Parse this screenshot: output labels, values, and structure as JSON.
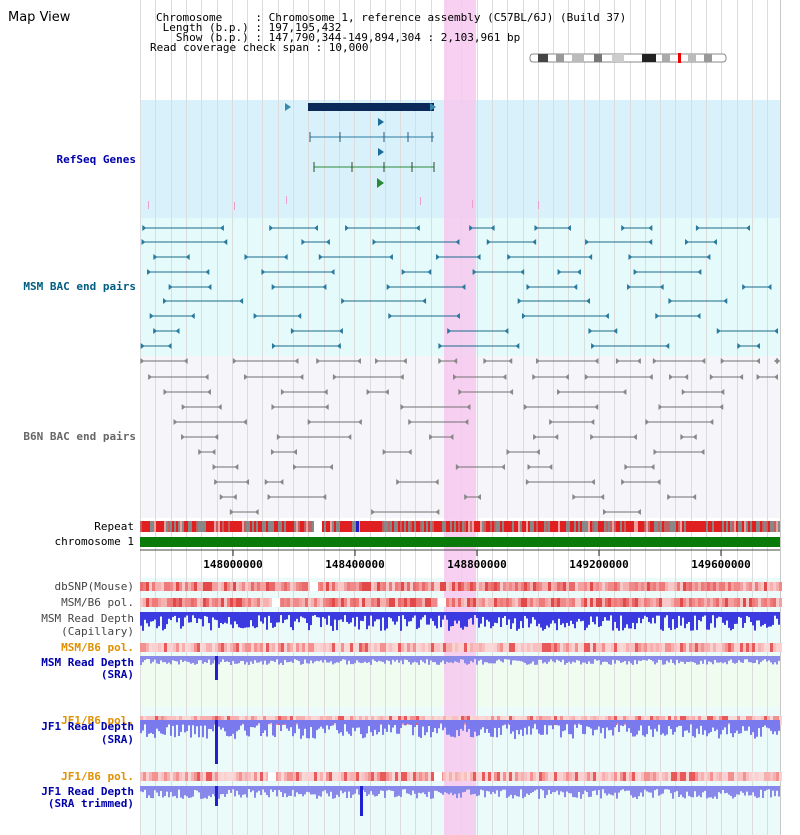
{
  "page": {
    "title": "Map View"
  },
  "info": {
    "chromosome_line": "Chromosome     : Chromosome 1, reference assembly (C57BL/6J) (Build 37)",
    "length_line": " Length (b.p.) : 197,195,432",
    "show_line": "   Show (b.p.) : 147,790,344-149,894,304 : 2,103,961 bp",
    "coverage_line": "Read coverage check span : 10,000"
  },
  "tracks": {
    "refseq": "RefSeq Genes",
    "msm_bac": "MSM BAC end pairs",
    "b6n_bac": "B6N BAC end pairs",
    "repeat": "Repeat",
    "chromosome": "chromosome 1",
    "dbsnp": "dbSNP(Mouse)",
    "msm_b6_pol_1": "MSM/B6 pol.",
    "msm_read_depth_cap_1": "MSM Read Depth",
    "msm_read_depth_cap_2": "(Capillary)",
    "msm_b6_pol_2": "MSM/B6 pol.",
    "msm_read_depth_sra_1": "MSM Read Depth",
    "msm_read_depth_sra_2": "(SRA)",
    "jf1_b6_pol_1": "JF1/B6 pol.",
    "jf1_read_depth_sra_1": "JF1 Read Depth",
    "jf1_read_depth_sra_2": "(SRA)",
    "jf1_b6_pol_2": "JF1/B6 pol.",
    "jf1_read_depth_trim_1": "JF1 Read Depth",
    "jf1_read_depth_trim_2": "(SRA trimmed)"
  },
  "axis": {
    "ticks": [
      "148000000",
      "148400000",
      "148800000",
      "149200000",
      "149600000"
    ]
  },
  "colors": {
    "refseq_bg": "#d8f1fb",
    "msm_bg": "#e5fbfb",
    "b6n_bg": "#f3f3f8",
    "lower_bg": "#e8fbfb",
    "highlight": "#f7c8ef",
    "label_blue": "#0000aa",
    "label_orange": "#e09000",
    "label_teal": "#005c80"
  }
}
